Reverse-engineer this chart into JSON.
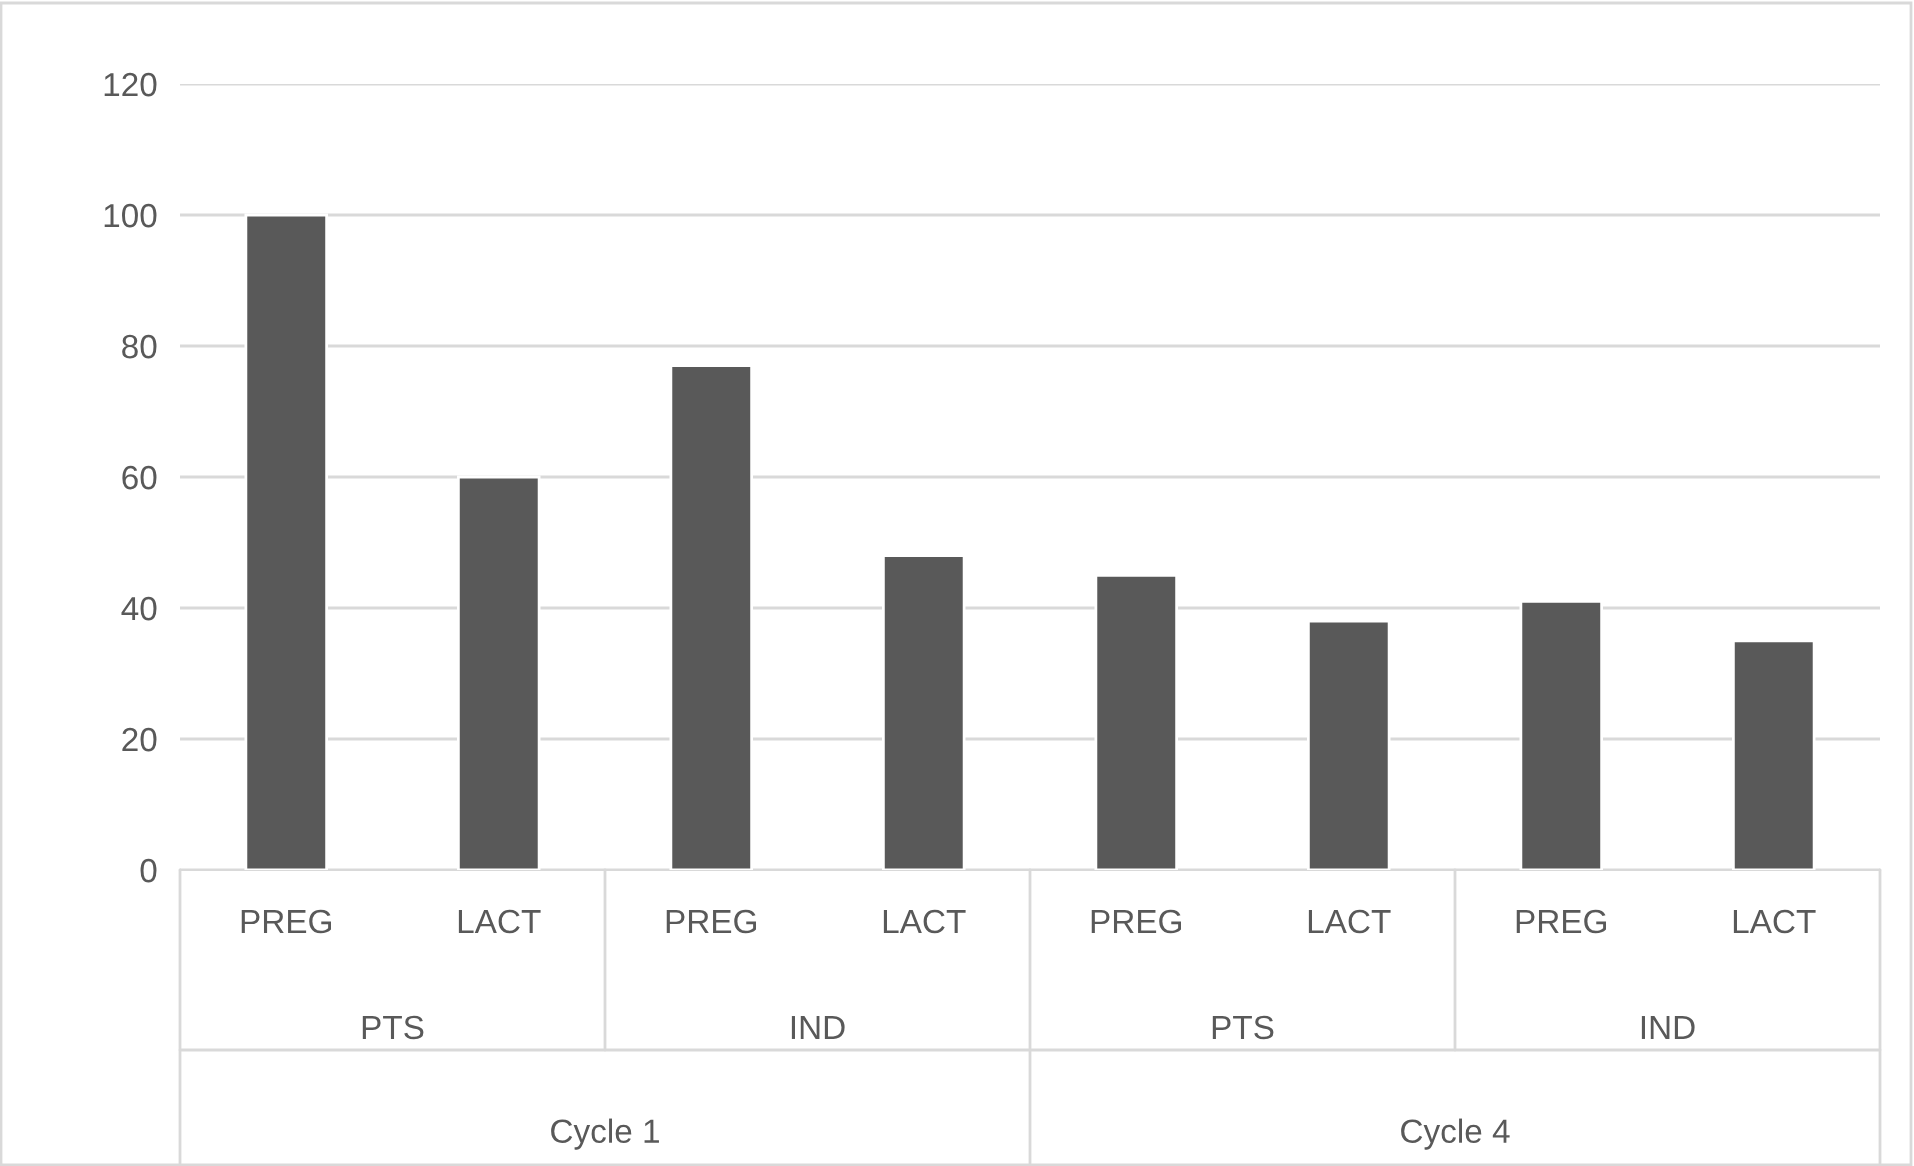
{
  "chart_data": {
    "type": "bar",
    "categories": [
      "PREG",
      "LACT",
      "PREG",
      "LACT",
      "PREG",
      "LACT",
      "PREG",
      "LACT"
    ],
    "values": [
      100,
      60,
      77,
      48,
      45,
      38,
      41,
      35
    ],
    "color": "#595959",
    "ylim": [
      0,
      120
    ],
    "yticks": [
      0,
      20,
      40,
      60,
      80,
      100,
      120
    ],
    "grid": "y",
    "annotations": [
      "PTS",
      "IND",
      "PTS",
      "IND",
      "Cycle 1",
      "Cycle 4"
    ]
  }
}
